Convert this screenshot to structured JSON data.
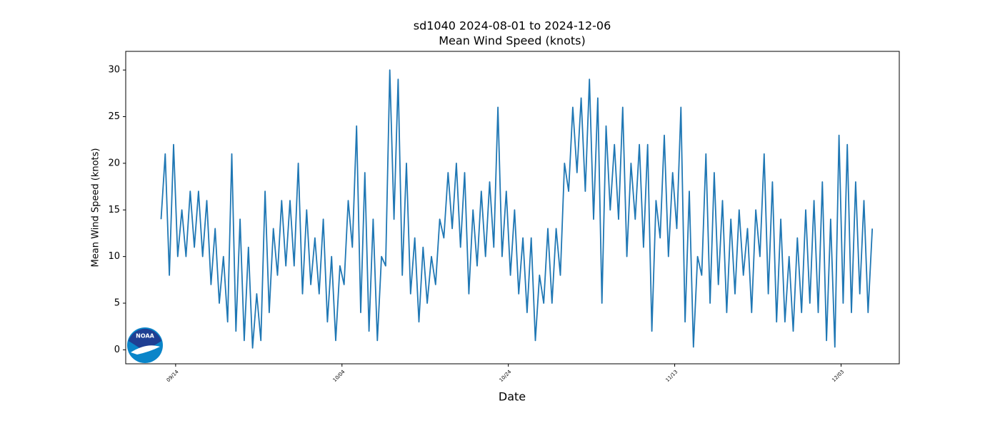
{
  "chart_data": {
    "type": "line",
    "title": "sd1040 2024-08-01 to 2024-12-06",
    "subtitle": "Mean Wind Speed (knots)",
    "x_label": "Date",
    "y_label": "Mean Wind Speed (knots)",
    "color": "#1f77b4",
    "logo_text": "NOAA",
    "xlim": [
      "09/08",
      "12/10"
    ],
    "xticks": [
      "09/14",
      "10/04",
      "10/24",
      "11/13",
      "12/03"
    ],
    "ylim": [
      -1.5,
      32
    ],
    "yticks": [
      0,
      5,
      10,
      15,
      20,
      25,
      30
    ],
    "x": [
      "09/12",
      "09/12",
      "09/13",
      "09/13",
      "09/14",
      "09/14",
      "09/15",
      "09/15",
      "09/16",
      "09/16",
      "09/17",
      "09/17",
      "09/18",
      "09/18",
      "09/19",
      "09/19",
      "09/20",
      "09/20",
      "09/21",
      "09/21",
      "09/22",
      "09/22",
      "09/23",
      "09/23",
      "09/24",
      "09/24",
      "09/25",
      "09/25",
      "09/26",
      "09/26",
      "09/27",
      "09/27",
      "09/28",
      "09/28",
      "09/29",
      "09/29",
      "09/30",
      "09/30",
      "10/01",
      "10/01",
      "10/02",
      "10/02",
      "10/03",
      "10/03",
      "10/04",
      "10/04",
      "10/05",
      "10/05",
      "10/06",
      "10/06",
      "10/07",
      "10/07",
      "10/08",
      "10/08",
      "10/09",
      "10/09",
      "10/10",
      "10/10",
      "10/11",
      "10/11",
      "10/12",
      "10/12",
      "10/13",
      "10/13",
      "10/14",
      "10/14",
      "10/15",
      "10/15",
      "10/16",
      "10/16",
      "10/17",
      "10/17",
      "10/18",
      "10/18",
      "10/19",
      "10/19",
      "10/20",
      "10/20",
      "10/21",
      "10/21",
      "10/22",
      "10/22",
      "10/23",
      "10/23",
      "10/24",
      "10/24",
      "10/25",
      "10/25",
      "10/26",
      "10/26",
      "10/27",
      "10/27",
      "10/28",
      "10/28",
      "10/29",
      "10/29",
      "10/30",
      "10/30",
      "10/31",
      "10/31",
      "11/01",
      "11/01",
      "11/02",
      "11/02",
      "11/03",
      "11/03",
      "11/04",
      "11/04",
      "11/05",
      "11/05",
      "11/06",
      "11/06",
      "11/07",
      "11/07",
      "11/08",
      "11/08",
      "11/09",
      "11/09",
      "11/10",
      "11/10",
      "11/11",
      "11/11",
      "11/12",
      "11/12",
      "11/13",
      "11/13",
      "11/14",
      "11/14",
      "11/15",
      "11/15",
      "11/16",
      "11/16",
      "11/17",
      "11/17",
      "11/18",
      "11/18",
      "11/19",
      "11/19",
      "11/20",
      "11/20",
      "11/21",
      "11/21",
      "11/22",
      "11/22",
      "11/23",
      "11/23",
      "11/24",
      "11/24",
      "11/25",
      "11/25",
      "11/26",
      "11/26",
      "11/27",
      "11/27",
      "11/28",
      "11/28",
      "11/29",
      "11/29",
      "11/30",
      "11/30",
      "12/01",
      "12/01",
      "12/02",
      "12/02",
      "12/03",
      "12/03",
      "12/04",
      "12/04",
      "12/05",
      "12/05",
      "12/06",
      "12/06"
    ],
    "values": [
      14,
      21,
      8,
      22,
      10,
      15,
      10,
      17,
      11,
      17,
      10,
      16,
      7,
      13,
      5,
      10,
      3,
      21,
      2,
      14,
      1,
      11,
      0.2,
      6,
      1,
      17,
      4,
      13,
      8,
      16,
      9,
      16,
      9,
      20,
      6,
      15,
      7,
      12,
      6,
      14,
      3,
      10,
      1,
      9,
      7,
      16,
      11,
      24,
      4,
      19,
      2,
      14,
      1,
      10,
      9,
      30,
      14,
      29,
      8,
      20,
      6,
      12,
      3,
      11,
      5,
      10,
      7,
      14,
      12,
      19,
      13,
      20,
      11,
      19,
      6,
      15,
      9,
      17,
      10,
      18,
      11,
      26,
      10,
      17,
      8,
      15,
      6,
      12,
      4,
      12,
      1,
      8,
      5,
      13,
      5,
      13,
      8,
      20,
      17,
      26,
      19,
      27,
      17,
      29,
      14,
      27,
      5,
      24,
      15,
      22,
      14,
      26,
      10,
      20,
      14,
      22,
      11,
      22,
      2,
      16,
      12,
      23,
      10,
      19,
      13,
      26,
      3,
      17,
      0.3,
      10,
      8,
      21,
      5,
      19,
      7,
      16,
      4,
      14,
      6,
      15,
      8,
      13,
      4,
      15,
      10,
      21,
      6,
      18,
      3,
      14,
      3,
      10,
      2,
      12,
      4,
      15,
      5,
      16,
      4,
      18,
      1,
      14,
      0.3,
      23,
      5,
      22,
      4,
      18,
      6,
      16,
      4,
      13
    ]
  }
}
